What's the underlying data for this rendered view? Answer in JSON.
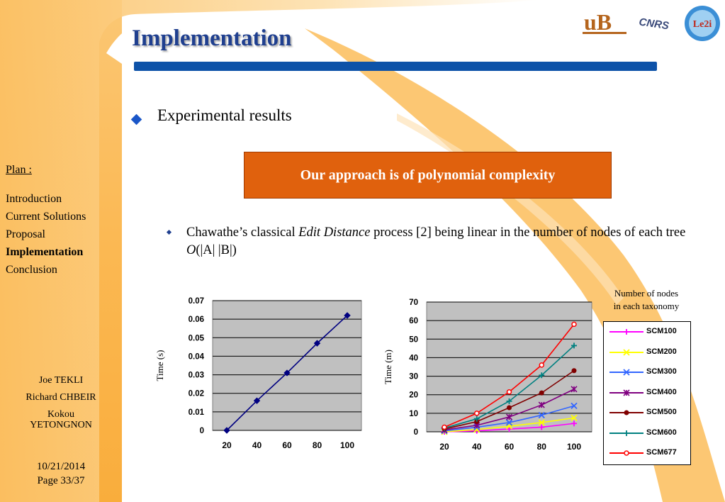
{
  "slide": {
    "title": "Implementation",
    "heading": "Experimental results",
    "callout": "Our approach is of polynomial complexity",
    "para": {
      "before": "Chawathe’s classical ",
      "italic": "Edit Distance",
      "middle": " process [2] being linear in the number of nodes of each tree ",
      "o": "O",
      "after": "(|A| |B|)"
    }
  },
  "logos": {
    "ub": "uB",
    "cnrs": "CNRS",
    "le2i": "Le2i"
  },
  "sidebar": {
    "plan_heading": "Plan :",
    "items": [
      "Introduction",
      "Current Solutions",
      "Proposal",
      "Implementation",
      "Conclusion"
    ],
    "current_item": "Implementation",
    "authors": [
      "Joe TEKLI",
      "Richard CHBEIR",
      "Kokou",
      "YETONGNON"
    ],
    "date": "10/21/2014",
    "page": "Page 33/37"
  },
  "legend": {
    "title_line1": "Number of nodes",
    "title_line2": "in each taxonomy"
  },
  "chart_data": [
    {
      "type": "line",
      "x": [
        20,
        40,
        60,
        80,
        100
      ],
      "series": [
        {
          "values": [
            0.0,
            0.016,
            0.031,
            0.047,
            0.062
          ],
          "color": "#000080",
          "marker": "diamond"
        }
      ],
      "ylabel": "Time (s)",
      "xlabel": "",
      "ylim": [
        0,
        0.07
      ],
      "yticks": [
        "0",
        "0.01",
        "0.02",
        "0.03",
        "0.04",
        "0.05",
        "0.06",
        "0.07"
      ],
      "xticks": [
        "20",
        "40",
        "60",
        "80",
        "100"
      ],
      "grid": true,
      "plot_bg": "#c0c0c0"
    },
    {
      "type": "line",
      "x": [
        20,
        40,
        60,
        80,
        100
      ],
      "series": [
        {
          "name": "SCM100",
          "values": [
            0.0,
            0.5,
            1.5,
            2.5,
            4.5
          ],
          "color": "#ff00ff",
          "marker": "plus"
        },
        {
          "name": "SCM200",
          "values": [
            0.0,
            1.2,
            3.0,
            5.0,
            7.5
          ],
          "color": "#ffff00",
          "marker": "x"
        },
        {
          "name": "SCM300",
          "values": [
            0.5,
            2.5,
            5.0,
            9.0,
            14.0
          ],
          "color": "#3366ff",
          "marker": "x"
        },
        {
          "name": "SCM400",
          "values": [
            1.0,
            3.5,
            8.0,
            14.5,
            23.0
          ],
          "color": "#800080",
          "marker": "star"
        },
        {
          "name": "SCM500",
          "values": [
            1.5,
            5.5,
            13.0,
            21.0,
            33.0
          ],
          "color": "#800000",
          "marker": "circle-filled"
        },
        {
          "name": "SCM600",
          "values": [
            2.0,
            7.0,
            16.5,
            30.5,
            46.5
          ],
          "color": "#008080",
          "marker": "plus"
        },
        {
          "name": "SCM677",
          "values": [
            2.5,
            10.0,
            21.5,
            36.0,
            58.0
          ],
          "color": "#ff0000",
          "marker": "circle-open"
        }
      ],
      "ylabel": "Time (m)",
      "xlabel": "",
      "ylim": [
        0,
        70
      ],
      "yticks": [
        "0",
        "10",
        "20",
        "30",
        "40",
        "50",
        "60",
        "70"
      ],
      "xticks": [
        "20",
        "40",
        "60",
        "80",
        "100"
      ],
      "grid": true,
      "plot_bg": "#c0c0c0",
      "legend_placement": "right"
    }
  ]
}
